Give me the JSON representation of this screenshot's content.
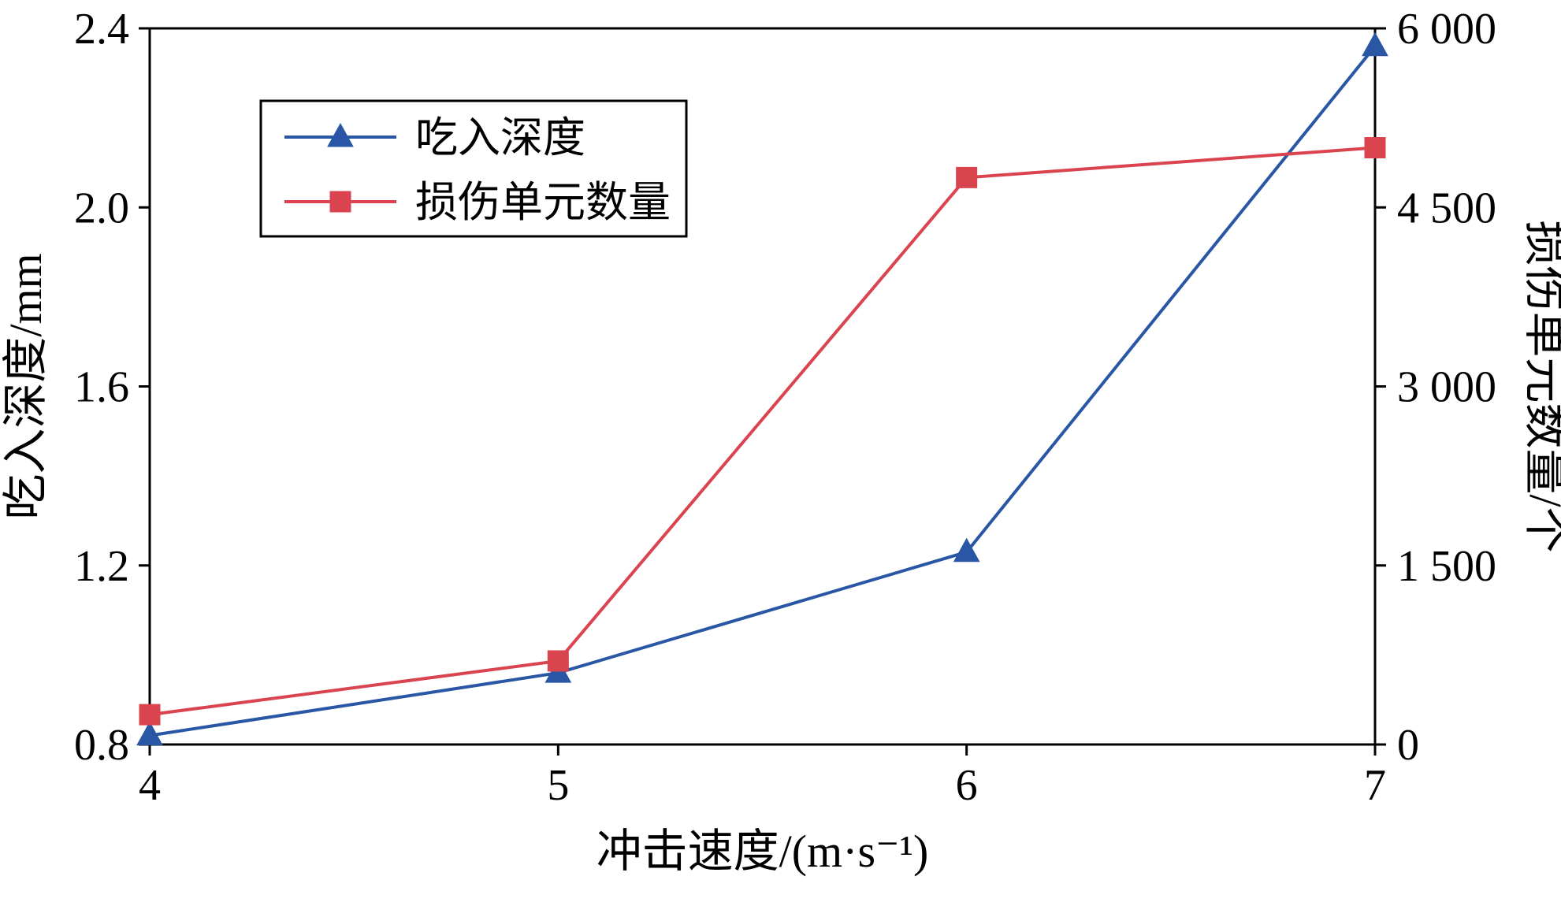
{
  "page": {
    "background": "#ffffff"
  },
  "chart_data": {
    "type": "line",
    "x": [
      4,
      5,
      6,
      7
    ],
    "x_tick_labels": [
      "4",
      "5",
      "6",
      "7"
    ],
    "x_range": [
      4,
      7
    ],
    "xlabel": "冲击速度/(m·s⁻¹)",
    "left_axis": {
      "label": "吃入深度/mm",
      "range": [
        0.8,
        2.4
      ],
      "ticks": [
        0.8,
        1.2,
        1.6,
        2.0,
        2.4
      ],
      "tick_labels": [
        "0.8",
        "1.2",
        "1.6",
        "2.0",
        "2.4"
      ]
    },
    "right_axis": {
      "label": "损伤单元数量/个",
      "range": [
        0,
        6000
      ],
      "ticks": [
        0,
        1500,
        3000,
        4500,
        6000
      ],
      "tick_labels": [
        "0",
        "1 500",
        "3 000",
        "4 500",
        "6 000"
      ]
    },
    "grid": false,
    "legend": {
      "position": "upper-left-inside",
      "border": true
    },
    "frame_color": "#000000",
    "series": [
      {
        "name": "吃入深度",
        "axis": "left",
        "marker": "triangle",
        "color": "#2a57a5",
        "values": [
          0.82,
          0.96,
          1.23,
          2.36
        ]
      },
      {
        "name": "损伤单元数量",
        "axis": "right",
        "marker": "square",
        "color": "#d9444f",
        "values": [
          250,
          700,
          4750,
          5000
        ]
      }
    ]
  }
}
